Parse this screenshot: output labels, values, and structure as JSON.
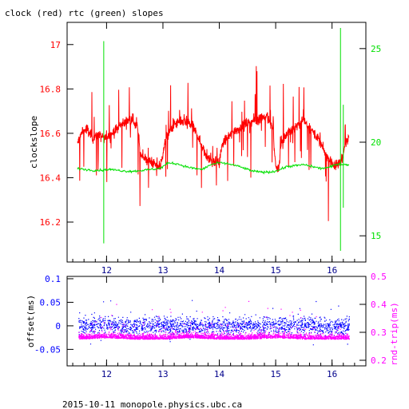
{
  "title": "clock (red) rtc (green) slopes",
  "footer": "2015-10-11 monopole.physics.ubc.ca",
  "colors": {
    "clock": "#ff0000",
    "rtc": "#00e000",
    "offset": "#0000ff",
    "rndtrip": "#ff00ff",
    "axis": "#000000"
  },
  "chart_data": [
    {
      "type": "line",
      "title": "clock (red) rtc (green) slopes",
      "xlabel": "",
      "ylabel": "clockslope",
      "ylabel_right": "",
      "x_ticks": [
        "12",
        "13",
        "14",
        "15",
        "16"
      ],
      "x_tick_values": [
        12,
        13,
        14,
        15,
        16
      ],
      "xlim": [
        11.3,
        16.6
      ],
      "ylim": [
        16.02,
        17.1
      ],
      "y_ticks": [
        "16.2",
        "16.4",
        "16.6",
        "16.8",
        "17"
      ],
      "y_tick_values": [
        16.2,
        16.4,
        16.6,
        16.8,
        17.0
      ],
      "ylim_right": [
        13.6,
        26.4
      ],
      "y_ticks_right": [
        "15",
        "20",
        "25"
      ],
      "y_tick_values_right": [
        15,
        20,
        25
      ],
      "series": [
        {
          "name": "clock (red)",
          "axis": "left",
          "x": [
            11.48,
            11.55,
            11.65,
            11.75,
            11.85,
            11.95,
            12.05,
            12.15,
            12.25,
            12.35,
            12.45,
            12.55,
            12.6,
            12.7,
            12.8,
            12.9,
            12.95,
            13.05,
            13.1,
            13.2,
            13.3,
            13.4,
            13.5,
            13.6,
            13.7,
            13.8,
            13.9,
            14.0,
            14.05,
            14.15,
            14.25,
            14.35,
            14.45,
            14.55,
            14.65,
            14.75,
            14.85,
            14.95,
            15.0,
            15.05,
            15.1,
            15.2,
            15.3,
            15.4,
            15.5,
            15.6,
            15.7,
            15.8,
            15.9,
            16.0,
            16.05,
            16.15,
            16.25,
            16.3
          ],
          "y": [
            16.55,
            16.6,
            16.62,
            16.58,
            16.59,
            16.58,
            16.59,
            16.61,
            16.64,
            16.65,
            16.67,
            16.62,
            16.51,
            16.48,
            16.47,
            16.45,
            16.45,
            16.57,
            16.6,
            16.64,
            16.65,
            16.65,
            16.64,
            16.6,
            16.53,
            16.49,
            16.47,
            16.47,
            16.55,
            16.58,
            16.61,
            16.62,
            16.64,
            16.65,
            16.66,
            16.67,
            16.68,
            16.62,
            16.45,
            16.44,
            16.55,
            16.6,
            16.62,
            16.64,
            16.66,
            16.62,
            16.6,
            16.55,
            16.5,
            16.47,
            16.45,
            16.47,
            16.55,
            16.58
          ]
        },
        {
          "name": "rtc (green)",
          "axis": "right",
          "x": [
            11.48,
            11.6,
            11.75,
            11.9,
            12.05,
            12.2,
            12.35,
            12.5,
            12.65,
            12.8,
            12.95,
            13.1,
            13.25,
            13.4,
            13.55,
            13.7,
            13.85,
            14.0,
            14.15,
            14.3,
            14.45,
            14.6,
            14.75,
            14.9,
            15.05,
            15.2,
            15.35,
            15.5,
            15.65,
            15.8,
            15.95,
            16.1,
            16.25,
            16.3
          ],
          "y": [
            18.6,
            18.55,
            18.5,
            18.5,
            18.55,
            18.5,
            18.45,
            18.45,
            18.5,
            18.55,
            18.6,
            18.9,
            18.85,
            18.7,
            18.6,
            18.55,
            18.8,
            18.9,
            18.85,
            18.75,
            18.6,
            18.45,
            18.4,
            18.4,
            18.5,
            18.7,
            18.75,
            18.8,
            18.7,
            18.6,
            18.65,
            18.85,
            18.8,
            18.75
          ]
        }
      ]
    },
    {
      "type": "scatter",
      "xlabel": "",
      "ylabel": "offset(ms)",
      "ylabel_right": "rnd-trip(ms)",
      "x_ticks": [
        "12",
        "13",
        "14",
        "15",
        "16"
      ],
      "x_tick_values": [
        12,
        13,
        14,
        15,
        16
      ],
      "xlim": [
        11.3,
        16.6
      ],
      "ylim": [
        -0.085,
        0.105
      ],
      "y_ticks": [
        "-0.05",
        "0",
        "0.05",
        "0.1"
      ],
      "y_tick_values": [
        -0.05,
        0,
        0.05,
        0.1
      ],
      "ylim_right": [
        0.18,
        0.5
      ],
      "y_ticks_right": [
        "0.2",
        "0.3",
        "0.4",
        "0.5"
      ],
      "y_tick_values_right": [
        0.2,
        0.3,
        0.4,
        0.5
      ],
      "series": [
        {
          "name": "offset",
          "axis": "left",
          "x": [
            11.5,
            12.0,
            12.5,
            13.0,
            13.5,
            14.0,
            14.5,
            15.0,
            15.5,
            16.0,
            16.3
          ],
          "y": [
            0.0,
            0.002,
            -0.001,
            0.001,
            0.0,
            -0.001,
            0.001,
            0.0,
            0.001,
            -0.001,
            0.0
          ]
        },
        {
          "name": "rnd-trip",
          "axis": "right",
          "x": [
            11.5,
            12.0,
            12.5,
            13.0,
            13.5,
            14.0,
            14.5,
            15.0,
            15.5,
            16.0,
            16.3
          ],
          "y": [
            0.28,
            0.285,
            0.28,
            0.28,
            0.285,
            0.28,
            0.28,
            0.285,
            0.28,
            0.28,
            0.28
          ]
        }
      ]
    }
  ]
}
